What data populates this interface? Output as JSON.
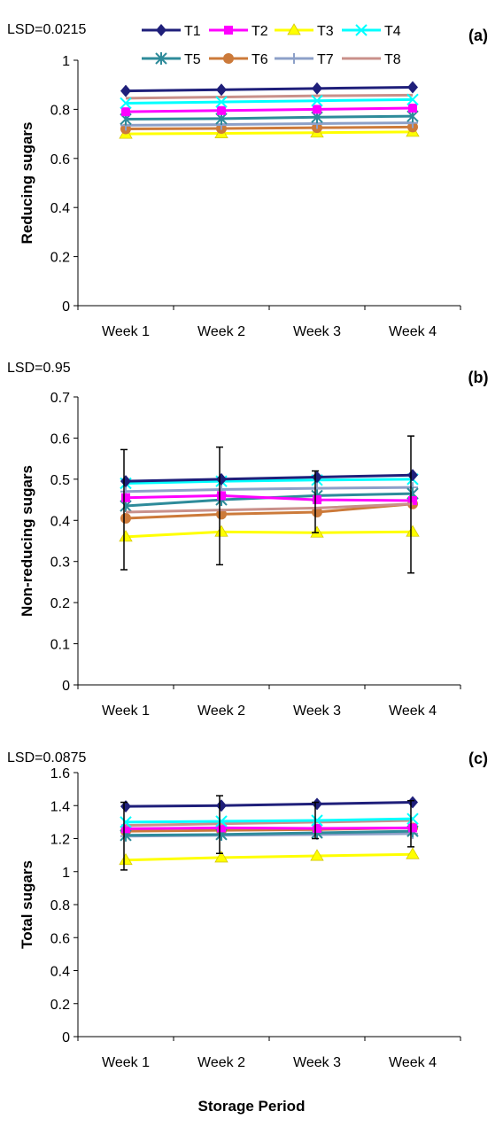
{
  "legend": [
    {
      "label": "T1",
      "color": "#1f1f7a",
      "marker": "diamond"
    },
    {
      "label": "T2",
      "color": "#ff00ff",
      "marker": "square"
    },
    {
      "label": "T3",
      "color": "#ffff00",
      "marker": "triangle"
    },
    {
      "label": "T4",
      "color": "#00ffff",
      "marker": "x"
    },
    {
      "label": "T5",
      "color": "#2e8b9a",
      "marker": "star"
    },
    {
      "label": "T6",
      "color": "#cc7a3a",
      "marker": "circle"
    },
    {
      "label": "T7",
      "color": "#8da0c8",
      "marker": "plus"
    },
    {
      "label": "T8",
      "color": "#c9908a",
      "marker": "none"
    }
  ],
  "xlabel_shared": "Storage Period",
  "chart_data": [
    {
      "type": "line",
      "panel_label": "(a)",
      "lsd_text": "LSD=0.0215",
      "ylabel": "Reducing sugars",
      "categories": [
        "Week 1",
        "Week 2",
        "Week 3",
        "Week 4"
      ],
      "ylim": [
        0,
        1
      ],
      "yticks": [
        "0",
        "0.2",
        "0.4",
        "0.6",
        "0.8",
        "1"
      ],
      "ytick_values": [
        0,
        0.2,
        0.4,
        0.6,
        0.8,
        1
      ],
      "series": [
        {
          "name": "T1",
          "values": [
            0.875,
            0.88,
            0.885,
            0.89
          ]
        },
        {
          "name": "T2",
          "values": [
            0.79,
            0.795,
            0.8,
            0.805
          ]
        },
        {
          "name": "T3",
          "values": [
            0.7,
            0.702,
            0.705,
            0.708
          ]
        },
        {
          "name": "T4",
          "values": [
            0.825,
            0.83,
            0.835,
            0.84
          ]
        },
        {
          "name": "T5",
          "values": [
            0.76,
            0.762,
            0.768,
            0.772
          ]
        },
        {
          "name": "T6",
          "values": [
            0.72,
            0.722,
            0.725,
            0.728
          ]
        },
        {
          "name": "T7",
          "values": [
            0.735,
            0.738,
            0.742,
            0.745
          ]
        },
        {
          "name": "T8",
          "values": [
            0.845,
            0.85,
            0.855,
            0.858
          ]
        }
      ],
      "error_bars": []
    },
    {
      "type": "line",
      "panel_label": "(b)",
      "lsd_text": "LSD=0.95",
      "ylabel": "Non-reducing sugars",
      "categories": [
        "Week 1",
        "Week 2",
        "Week 3",
        "Week 4"
      ],
      "ylim": [
        0,
        0.7
      ],
      "yticks": [
        "0",
        "0.1",
        "0.2",
        "0.3",
        "0.4",
        "0.5",
        "0.6",
        "0.7"
      ],
      "ytick_values": [
        0,
        0.1,
        0.2,
        0.3,
        0.4,
        0.5,
        0.6,
        0.7
      ],
      "series": [
        {
          "name": "T1",
          "values": [
            0.495,
            0.5,
            0.505,
            0.51
          ]
        },
        {
          "name": "T2",
          "values": [
            0.455,
            0.46,
            0.45,
            0.448
          ]
        },
        {
          "name": "T3",
          "values": [
            0.36,
            0.372,
            0.37,
            0.372
          ]
        },
        {
          "name": "T4",
          "values": [
            0.49,
            0.495,
            0.498,
            0.5
          ]
        },
        {
          "name": "T5",
          "values": [
            0.435,
            0.45,
            0.46,
            0.465
          ]
        },
        {
          "name": "T6",
          "values": [
            0.405,
            0.415,
            0.42,
            0.44
          ]
        },
        {
          "name": "T7",
          "values": [
            0.47,
            0.475,
            0.478,
            0.48
          ]
        },
        {
          "name": "T8",
          "values": [
            0.42,
            0.425,
            0.43,
            0.44
          ]
        }
      ],
      "error_bars": [
        {
          "lo": 0.28,
          "hi": 0.572
        },
        {
          "lo": 0.292,
          "hi": 0.578
        },
        {
          "lo": 0.37,
          "hi": 0.52
        },
        {
          "lo": 0.272,
          "hi": 0.605
        }
      ]
    },
    {
      "type": "line",
      "panel_label": "(c)",
      "lsd_text": "LSD=0.0875",
      "ylabel": "Total sugars",
      "categories": [
        "Week 1",
        "Week 2",
        "Week 3",
        "Week 4"
      ],
      "ylim": [
        0,
        1.6
      ],
      "yticks": [
        "0",
        "0.2",
        "0.4",
        "0.6",
        "0.8",
        "1",
        "1.2",
        "1.4",
        "1.6"
      ],
      "ytick_values": [
        0,
        0.2,
        0.4,
        0.6,
        0.8,
        1.0,
        1.2,
        1.4,
        1.6
      ],
      "series": [
        {
          "name": "T1",
          "values": [
            1.395,
            1.4,
            1.41,
            1.42
          ]
        },
        {
          "name": "T2",
          "values": [
            1.26,
            1.265,
            1.262,
            1.265
          ]
        },
        {
          "name": "T3",
          "values": [
            1.07,
            1.085,
            1.095,
            1.105
          ]
        },
        {
          "name": "T4",
          "values": [
            1.3,
            1.305,
            1.31,
            1.32
          ]
        },
        {
          "name": "T5",
          "values": [
            1.22,
            1.225,
            1.235,
            1.245
          ]
        },
        {
          "name": "T6",
          "values": [
            1.245,
            1.25,
            1.255,
            1.265
          ]
        },
        {
          "name": "T7",
          "values": [
            1.215,
            1.22,
            1.225,
            1.23
          ]
        },
        {
          "name": "T8",
          "values": [
            1.28,
            1.29,
            1.3,
            1.31
          ]
        }
      ],
      "error_bars": [
        {
          "lo": 1.01,
          "hi": 1.42
        },
        {
          "lo": 1.11,
          "hi": 1.46
        },
        {
          "lo": 1.2,
          "hi": 1.42
        },
        {
          "lo": 1.15,
          "hi": 1.43
        }
      ]
    }
  ]
}
